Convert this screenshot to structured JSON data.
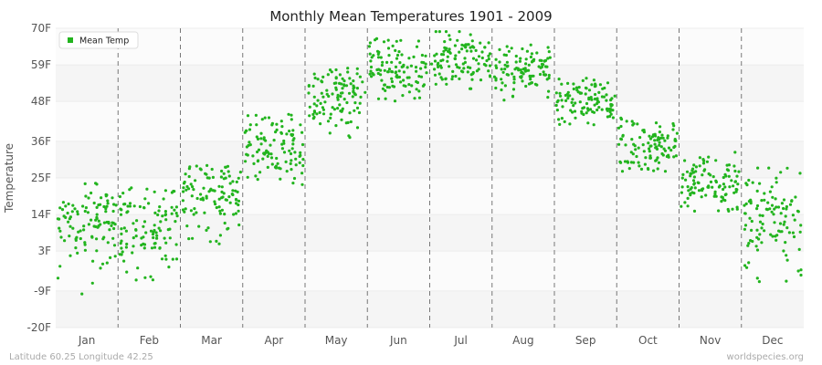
{
  "chart_data": {
    "type": "scatter",
    "title": "Monthly Mean Temperatures 1901 - 2009",
    "ylabel": "Temperature",
    "xlabel": "",
    "ylim": [
      -20,
      70
    ],
    "y_ticks": [
      "-20F",
      "-9F",
      "3F",
      "14F",
      "25F",
      "36F",
      "48F",
      "59F",
      "70F"
    ],
    "categories": [
      "Jan",
      "Feb",
      "Mar",
      "Apr",
      "May",
      "Jun",
      "Jul",
      "Aug",
      "Sep",
      "Oct",
      "Nov",
      "Dec"
    ],
    "legend": {
      "label": "Mean Temp",
      "position": "top-left"
    },
    "grid": true,
    "series": [
      {
        "name": "Mean Temp",
        "color": "#22b41e",
        "monthly_ranges": [
          {
            "month": "Jan",
            "min": -11,
            "max": 24,
            "typical": 12
          },
          {
            "month": "Feb",
            "min": -8,
            "max": 22,
            "typical": 10
          },
          {
            "month": "Mar",
            "min": 5,
            "max": 29,
            "typical": 20
          },
          {
            "month": "Apr",
            "min": 23,
            "max": 45,
            "typical": 34
          },
          {
            "month": "May",
            "min": 37,
            "max": 58,
            "typical": 48
          },
          {
            "month": "Jun",
            "min": 48,
            "max": 67,
            "typical": 58
          },
          {
            "month": "Jul",
            "min": 51,
            "max": 69,
            "typical": 61
          },
          {
            "month": "Aug",
            "min": 48,
            "max": 65,
            "typical": 58
          },
          {
            "month": "Sep",
            "min": 41,
            "max": 55,
            "typical": 48
          },
          {
            "month": "Oct",
            "min": 27,
            "max": 43,
            "typical": 35
          },
          {
            "month": "Nov",
            "min": 15,
            "max": 33,
            "typical": 23
          },
          {
            "month": "Dec",
            "min": -9,
            "max": 28,
            "typical": 15
          }
        ]
      }
    ]
  },
  "footer": {
    "left": "Latitude 60.25 Longitude 42.25",
    "right": "worldspecies.org"
  }
}
